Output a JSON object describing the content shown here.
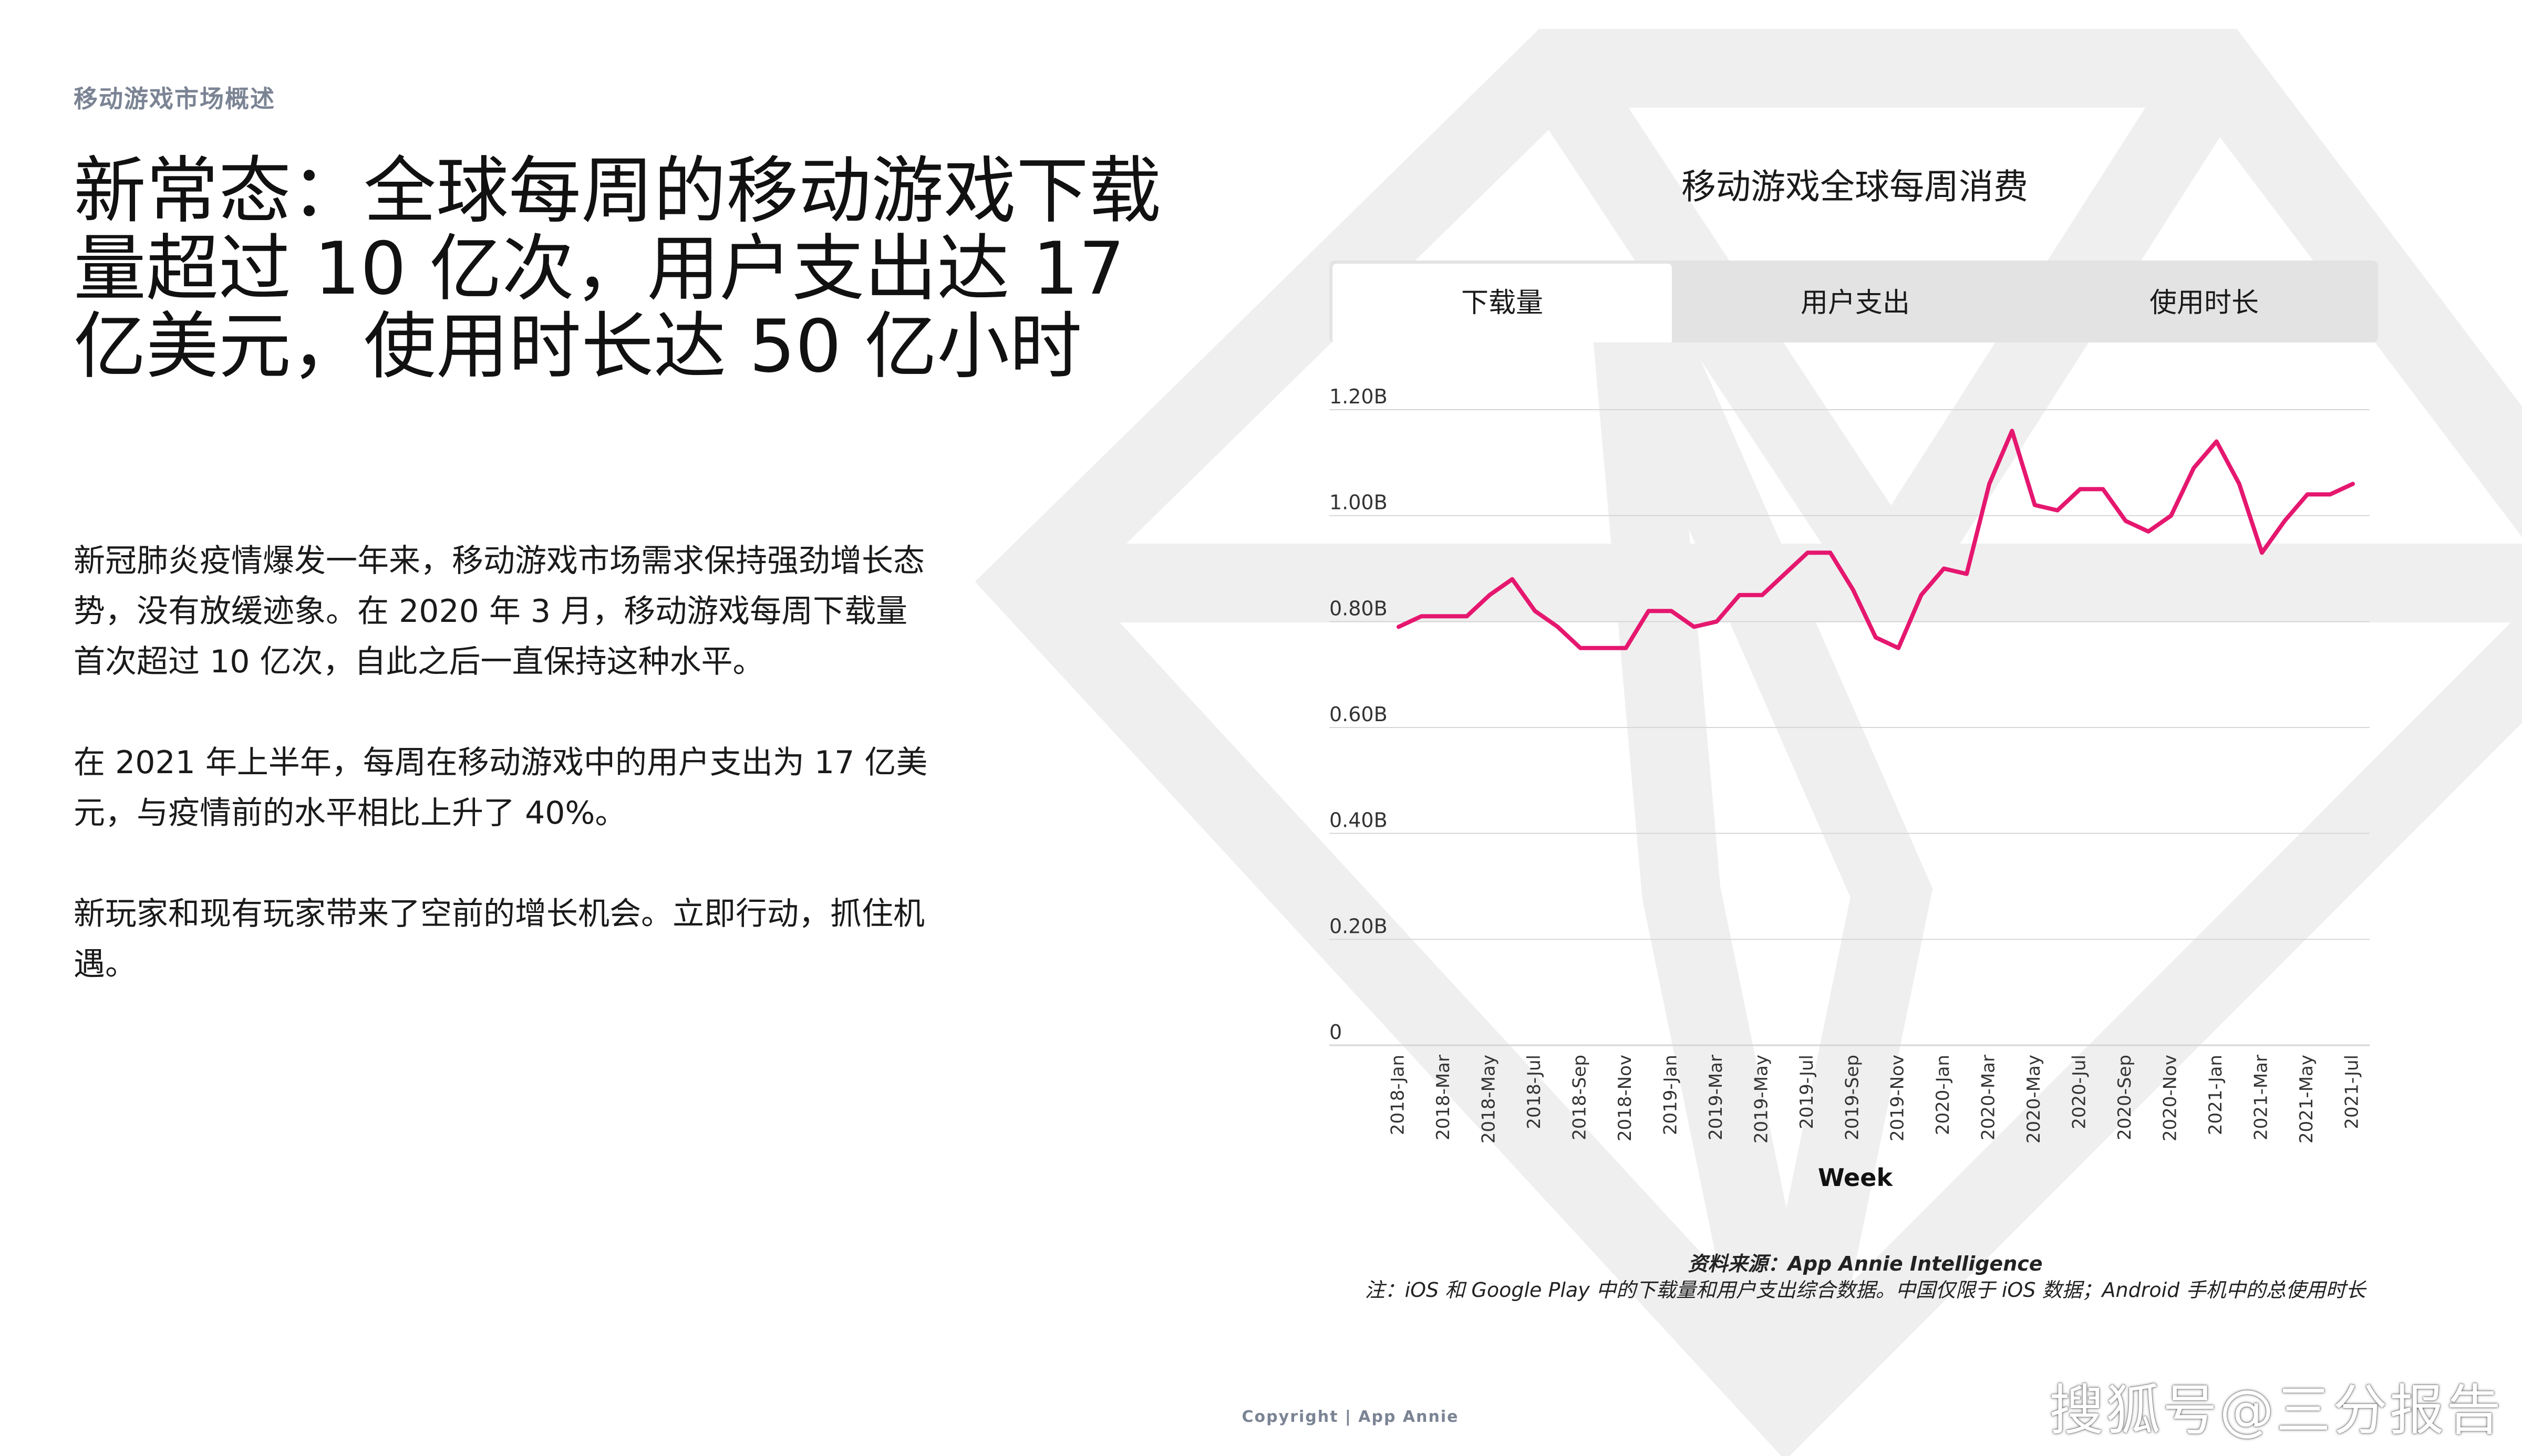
{
  "section_label": "移动游戏市场概述",
  "title": "新常态：全球每周的移动游戏下载量超过 10 亿次，用户支出达 17 亿美元，使用时长达 50 亿小时",
  "paragraphs": [
    "新冠肺炎疫情爆发一年来，移动游戏市场需求保持强劲增长态势，没有放缓迹象。在 2020 年 3 月，移动游戏每周下载量首次超过 10 亿次，自此之后一直保持这种水平。",
    "在 2021 年上半年，每周在移动游戏中的用户支出为 17 亿美元，与疫情前的水平相比上升了 40%。",
    "新玩家和现有玩家带来了空前的增长机会。立即行动，抓住机遇。"
  ],
  "chart_title": "移动游戏全球每周消费",
  "tabs": [
    {
      "label": "下载量",
      "active": true
    },
    {
      "label": "用户支出",
      "active": false
    },
    {
      "label": "使用时长",
      "active": false
    }
  ],
  "source_line": "资料来源：App Annie Intelligence",
  "note_line": "注：iOS 和 Google Play 中的下载量和用户支出综合数据。中国仅限于 iOS 数据；Android 手机中的总使用时长",
  "copyright": "Copyright | App Annie",
  "watermark_text": "搜狐号@三分报告",
  "colors": {
    "line": "#e5176f",
    "grid": "#d6d6d6",
    "watermark": "#efefef"
  },
  "chart_data": {
    "type": "line",
    "xlabel": "Week",
    "ylabel": "",
    "ylim": [
      0,
      1.2
    ],
    "grid": true,
    "yticks": [
      {
        "value": 0,
        "label": "0"
      },
      {
        "value": 0.2,
        "label": "0.20B"
      },
      {
        "value": 0.4,
        "label": "0.40B"
      },
      {
        "value": 0.6,
        "label": "0.60B"
      },
      {
        "value": 0.8,
        "label": "0.80B"
      },
      {
        "value": 1.0,
        "label": "1.00B"
      },
      {
        "value": 1.2,
        "label": "1.20B"
      }
    ],
    "tick_labels": [
      "2018-Jan",
      "2018-Mar",
      "2018-May",
      "2018-Jul",
      "2018-Sep",
      "2018-Nov",
      "2019-Jan",
      "2019-Mar",
      "2019-May",
      "2019-Jul",
      "2019-Sep",
      "2019-Nov",
      "2020-Jan",
      "2020-Mar",
      "2020-May",
      "2020-Jul",
      "2020-Sep",
      "2020-Nov",
      "2021-Jan",
      "2021-Mar",
      "2021-May",
      "2021-Jul"
    ],
    "series": [
      {
        "values": [
          0.79,
          0.81,
          0.81,
          0.81,
          0.85,
          0.88,
          0.82,
          0.79,
          0.75,
          0.75,
          0.75,
          0.82,
          0.82,
          0.79,
          0.8,
          0.85,
          0.85,
          0.89,
          0.93,
          0.93,
          0.86,
          0.77,
          0.75,
          0.85,
          0.9,
          0.89,
          1.06,
          1.16,
          1.02,
          1.01,
          1.05,
          1.05,
          0.99,
          0.97,
          1.0,
          1.09,
          1.14,
          1.06,
          0.93,
          0.99,
          1.04,
          1.04,
          1.06
        ]
      }
    ]
  }
}
